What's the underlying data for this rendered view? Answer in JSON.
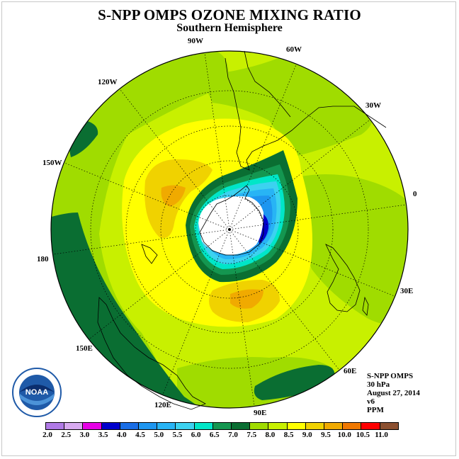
{
  "title": "S-NPP OMPS OZONE MIXING RATIO",
  "subtitle": "Southern Hemisphere",
  "longitude_labels": [
    "90W",
    "60W",
    "120W",
    "30W",
    "150W",
    "0",
    "180",
    "30E",
    "150E",
    "60E",
    "120E",
    "90E"
  ],
  "info": {
    "instrument": "S-NPP OMPS",
    "level": "30 hPa",
    "date": "August 27, 2014",
    "version": "v6",
    "units": "PPM"
  },
  "logo": {
    "text": "NOAA",
    "ring_text": "NATIONAL OCEANIC AND ATMOSPHERIC ADMINISTRATION • U.S. DEPARTMENT OF COMMERCE",
    "colors": [
      "#1f5aa8",
      "#0b2e6e",
      "#ffffff"
    ]
  },
  "colorbar": {
    "labels": [
      "2.0",
      "2.5",
      "3.0",
      "3.5",
      "4.0",
      "4.5",
      "5.0",
      "5.5",
      "6.0",
      "6.5",
      "7.0",
      "7.5",
      "8.0",
      "8.5",
      "9.0",
      "9.5",
      "10.0",
      "10.5",
      "11.0"
    ],
    "colors": [
      "#b07ae6",
      "#d8aaf0",
      "#e600e6",
      "#0000cc",
      "#1a6ee6",
      "#1e96f0",
      "#28b4f5",
      "#3cd2f0",
      "#00e6c8",
      "#149650",
      "#0a6e32",
      "#a0dc00",
      "#c8f000",
      "#ffff00",
      "#f0d200",
      "#f0aa00",
      "#f07800",
      "#ff0000",
      "#8c5030"
    ]
  },
  "map_colors": {
    "background_level": "#c8f000",
    "level_7_5": "#a0dc00",
    "level_7_0": "#0a6e32",
    "level_8_5": "#ffff00",
    "level_9_0": "#f0d200",
    "level_9_5": "#f0aa00",
    "level_6_5": "#149650",
    "level_6_0": "#00e6c8",
    "level_5_5": "#3cd2f0",
    "level_5_0": "#28b4f5",
    "level_4_5": "#1e96f0",
    "level_3_5": "#0000cc",
    "no_data": "#ffffff"
  }
}
